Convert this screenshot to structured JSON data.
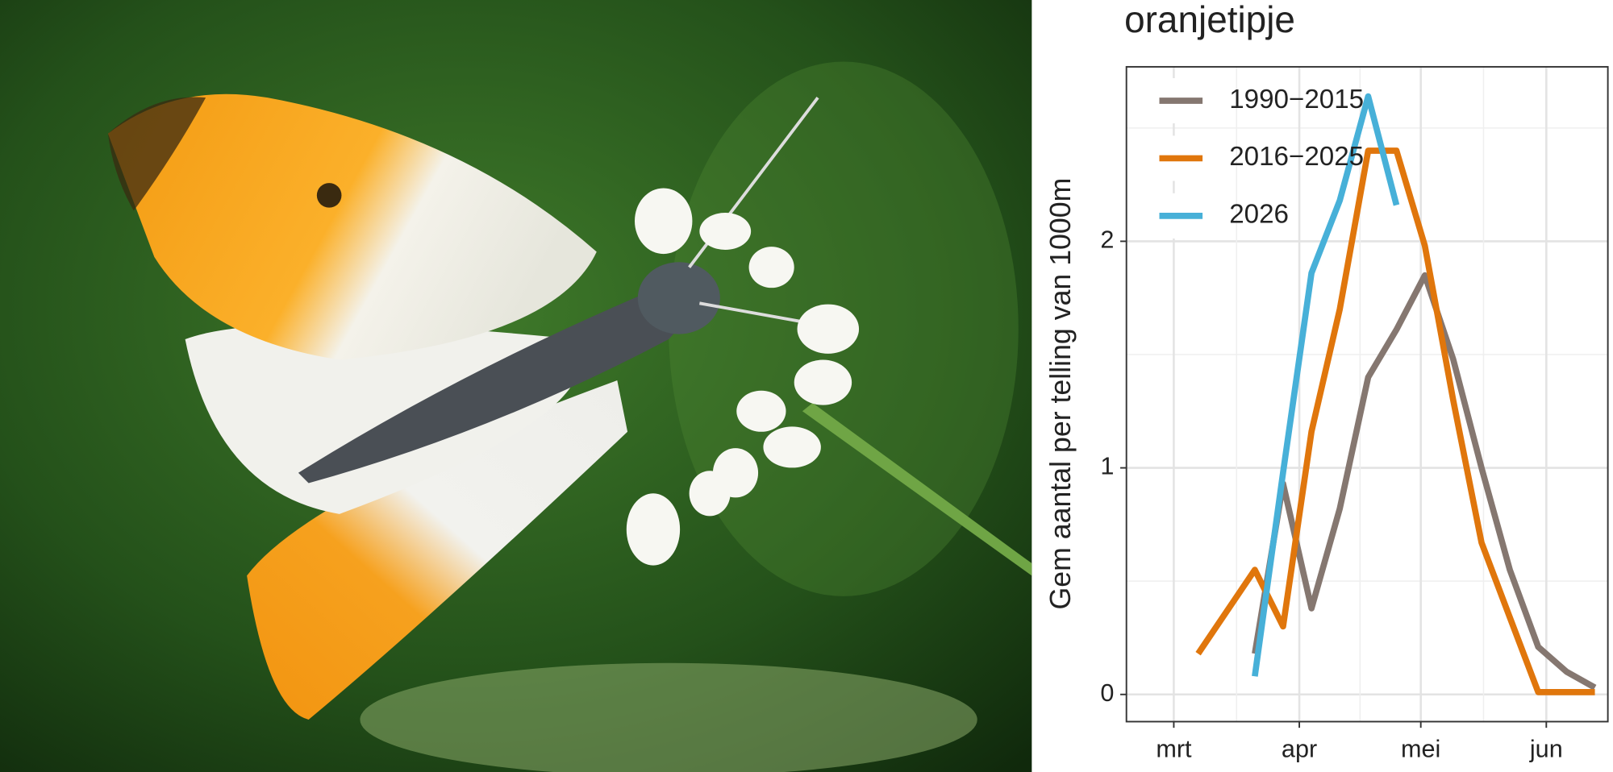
{
  "chart_data": {
    "type": "line",
    "title": "oranjetipje",
    "y_label": "Gem aantal per telling van 1000m",
    "xlim": [
      -11.7,
      107.2
    ],
    "xticks": [
      {
        "value": 0,
        "label": "mrt"
      },
      {
        "value": 31,
        "label": "apr"
      },
      {
        "value": 61,
        "label": "mei"
      },
      {
        "value": 92,
        "label": "jun"
      }
    ],
    "ylim": [
      -0.12,
      2.77
    ],
    "yticks": [
      0,
      1,
      2
    ],
    "grid": true,
    "legend": "top-left",
    "series": [
      {
        "name": "1990−2015",
        "color": "#857770",
        "x": [
          20,
          27,
          34,
          41,
          48,
          55,
          62,
          69,
          76,
          83,
          90,
          97,
          104
        ],
        "values": [
          0.18,
          0.93,
          0.38,
          0.82,
          1.4,
          1.61,
          1.85,
          1.48,
          1.0,
          0.55,
          0.21,
          0.1,
          0.03
        ]
      },
      {
        "name": "2016−2025",
        "color": "#e0760c",
        "x": [
          6,
          20,
          27,
          34,
          41,
          48,
          55,
          62,
          69,
          76,
          83,
          90,
          97,
          104
        ],
        "values": [
          0.18,
          0.55,
          0.3,
          1.16,
          1.7,
          2.4,
          2.4,
          1.98,
          1.3,
          0.67,
          0.34,
          0.01,
          0.01,
          0.01
        ]
      },
      {
        "name": "2026",
        "color": "#47b0d8",
        "x": [
          20,
          27,
          34,
          41,
          48,
          55
        ],
        "values": [
          0.08,
          0.98,
          1.86,
          2.18,
          2.64,
          2.16
        ]
      }
    ]
  }
}
